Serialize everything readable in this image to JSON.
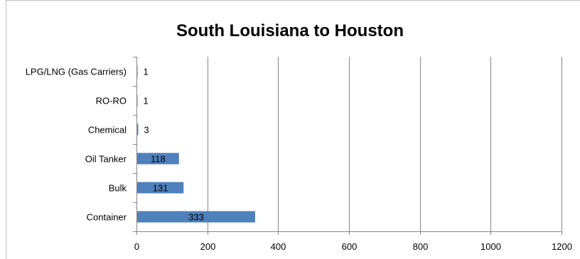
{
  "chart_data": {
    "type": "bar",
    "orientation": "horizontal",
    "title": "South Louisiana to Houston",
    "xlabel": "",
    "ylabel": "",
    "categories": [
      "LPG/LNG (Gas Carriers)",
      "RO-RO",
      "Chemical",
      "Oil Tanker",
      "Bulk",
      "Container"
    ],
    "values": [
      1,
      1,
      3,
      118,
      131,
      333
    ],
    "xlim": [
      0,
      1200
    ],
    "xticks": [
      0,
      200,
      400,
      600,
      800,
      1000,
      1200
    ],
    "grid": "vertical",
    "legend": "none",
    "bar_color": "#4f81bd"
  }
}
